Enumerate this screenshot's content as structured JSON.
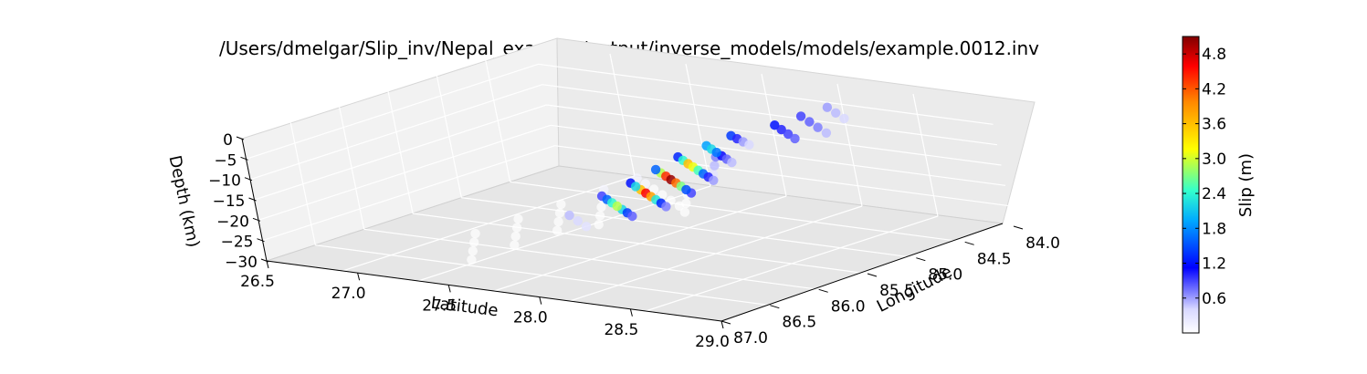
{
  "chart_data": {
    "type": "scatter3d",
    "title": "/Users/dmelgar/Slip_inv/Nepal_example/output/inverse_models/models/example.0012.inv",
    "xlabel": "Latitude",
    "ylabel": "Longitude",
    "zlabel": "Depth (km)",
    "lat_ticks": [
      "26.5",
      "27.0",
      "27.5",
      "28.0",
      "28.5",
      "29.0"
    ],
    "lon_ticks": [
      "84.0",
      "84.5",
      "85.0",
      "85.5",
      "86.0",
      "86.5",
      "87.0"
    ],
    "depth_ticks": [
      "0",
      "−5",
      "−10",
      "−15",
      "−20",
      "−25",
      "−30"
    ],
    "lat_range": [
      26.5,
      29.0
    ],
    "lon_range": [
      84.0,
      87.0
    ],
    "depth_range": [
      -30,
      0
    ],
    "grid": true,
    "colorbar": {
      "label": "Slip (m)",
      "ticks": [
        "0.6",
        "1.2",
        "1.8",
        "2.4",
        "3.0",
        "3.6",
        "4.2",
        "4.8"
      ],
      "tick_values": [
        0.6,
        1.2,
        1.8,
        2.4,
        3.0,
        3.6,
        4.2,
        4.8
      ],
      "range": [
        0.0,
        5.1
      ],
      "colormap": "jet with white at zero",
      "stops": [
        "#ffffff",
        "#0000ff",
        "#00ffff",
        "#ffff00",
        "#ff0000",
        "#800000"
      ]
    },
    "subfaults": [
      [
        84.5,
        27.8,
        -11,
        1.4
      ],
      [
        84.55,
        27.86,
        -11,
        1.0
      ],
      [
        84.6,
        27.92,
        -11,
        0.6
      ],
      [
        84.65,
        27.98,
        -11,
        0.4
      ],
      [
        84.62,
        27.72,
        -13,
        1.9
      ],
      [
        84.68,
        27.78,
        -13,
        2.2
      ],
      [
        84.74,
        27.84,
        -13,
        1.7
      ],
      [
        84.8,
        27.9,
        -13,
        1.1
      ],
      [
        84.86,
        27.96,
        -13,
        0.8
      ],
      [
        84.92,
        28.02,
        -13,
        0.5
      ],
      [
        84.78,
        27.64,
        -15,
        1.3
      ],
      [
        84.84,
        27.7,
        -15,
        2.4
      ],
      [
        84.9,
        27.76,
        -15,
        3.6
      ],
      [
        84.96,
        27.82,
        -15,
        3.1
      ],
      [
        85.02,
        27.88,
        -15,
        2.5
      ],
      [
        85.08,
        27.94,
        -15,
        1.6
      ],
      [
        85.14,
        28.0,
        -15,
        1.0
      ],
      [
        85.2,
        28.06,
        -15,
        0.6
      ],
      [
        84.95,
        27.6,
        -17,
        1.6
      ],
      [
        85.01,
        27.66,
        -17,
        2.9
      ],
      [
        85.07,
        27.72,
        -17,
        4.4
      ],
      [
        85.13,
        27.78,
        -17,
        5.0
      ],
      [
        85.19,
        27.84,
        -17,
        4.1
      ],
      [
        85.25,
        27.9,
        -17,
        2.7
      ],
      [
        85.31,
        27.96,
        -17,
        1.5
      ],
      [
        85.37,
        28.02,
        -17,
        0.9
      ],
      [
        85.15,
        27.56,
        -19,
        1.2
      ],
      [
        85.21,
        27.62,
        -19,
        2.2
      ],
      [
        85.27,
        27.68,
        -19,
        3.6
      ],
      [
        85.33,
        27.74,
        -19,
        4.6
      ],
      [
        85.39,
        27.8,
        -19,
        3.8
      ],
      [
        85.45,
        27.86,
        -19,
        2.3
      ],
      [
        85.51,
        27.92,
        -19,
        1.3
      ],
      [
        85.57,
        27.98,
        -19,
        0.7
      ],
      [
        85.35,
        27.5,
        -21,
        0.9
      ],
      [
        85.41,
        27.56,
        -21,
        1.6
      ],
      [
        85.47,
        27.62,
        -21,
        2.4
      ],
      [
        85.53,
        27.68,
        -21,
        2.9
      ],
      [
        85.59,
        27.74,
        -21,
        2.2
      ],
      [
        85.65,
        27.8,
        -21,
        1.4
      ],
      [
        85.71,
        27.86,
        -21,
        0.8
      ],
      [
        84.4,
        28.0,
        -8,
        1.2
      ],
      [
        84.48,
        28.08,
        -8,
        1.0
      ],
      [
        84.56,
        28.16,
        -8,
        0.9
      ],
      [
        84.64,
        28.24,
        -8,
        0.8
      ],
      [
        84.3,
        28.1,
        -6,
        0.9
      ],
      [
        84.4,
        28.2,
        -6,
        0.8
      ],
      [
        84.5,
        28.3,
        -6,
        0.7
      ],
      [
        84.6,
        28.4,
        -6,
        0.5
      ],
      [
        84.2,
        28.2,
        -4,
        0.6
      ],
      [
        84.3,
        28.3,
        -4,
        0.5
      ],
      [
        84.4,
        28.4,
        -4,
        0.4
      ],
      [
        85.7,
        27.5,
        -23,
        0.5
      ],
      [
        85.8,
        27.6,
        -23,
        0.4
      ],
      [
        85.9,
        27.7,
        -23,
        0.3
      ],
      [
        85.2,
        28.1,
        -9,
        0.7
      ],
      [
        85.4,
        28.2,
        -9,
        0.5
      ],
      [
        85.6,
        28.3,
        -9,
        0.3
      ],
      [
        86.0,
        28.1,
        -8,
        0.1
      ],
      [
        86.1,
        28.2,
        -8,
        0.05
      ],
      [
        86.2,
        28.3,
        -8,
        0.0
      ],
      [
        86.3,
        28.4,
        -8,
        0.0
      ],
      [
        86.4,
        28.5,
        -8,
        0.0
      ],
      [
        86.5,
        28.6,
        -8,
        0.0
      ],
      [
        86.0,
        27.9,
        -12,
        0.1
      ],
      [
        86.2,
        28.0,
        -12,
        0.0
      ],
      [
        86.4,
        28.1,
        -12,
        0.0
      ],
      [
        86.6,
        28.2,
        -12,
        0.0
      ],
      [
        86.8,
        28.3,
        -12,
        0.0
      ],
      [
        86.1,
        27.7,
        -16,
        0.0
      ],
      [
        86.3,
        27.8,
        -16,
        0.0
      ],
      [
        86.5,
        27.9,
        -16,
        0.0
      ],
      [
        86.7,
        28.0,
        -16,
        0.0
      ],
      [
        86.2,
        27.5,
        -20,
        0.0
      ],
      [
        86.4,
        27.6,
        -20,
        0.0
      ],
      [
        86.6,
        27.7,
        -20,
        0.0
      ],
      [
        86.8,
        27.8,
        -20,
        0.0
      ],
      [
        86.3,
        27.3,
        -24,
        0.0
      ],
      [
        86.5,
        27.4,
        -24,
        0.0
      ],
      [
        86.7,
        27.5,
        -24,
        0.0
      ],
      [
        86.9,
        27.6,
        -24,
        0.0
      ],
      [
        86.4,
        28.6,
        -6,
        0.0
      ],
      [
        86.6,
        28.7,
        -6,
        0.0
      ],
      [
        86.8,
        28.8,
        -6,
        0.0
      ]
    ]
  }
}
